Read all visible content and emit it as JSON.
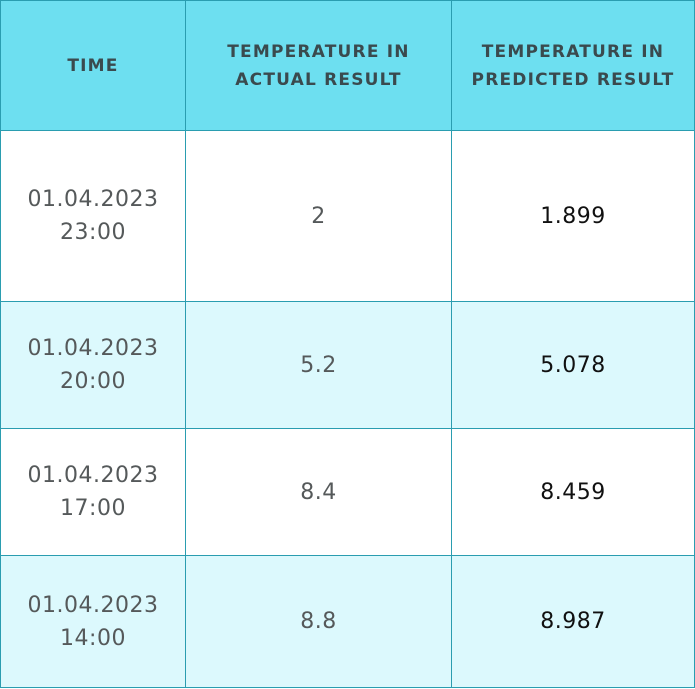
{
  "table": {
    "headers": {
      "time": "TIME",
      "actual": "TEMPERATURE IN ACTUAL RESULT",
      "predicted": "TEMPERATURE IN PREDICTED RESULT"
    },
    "rows": [
      {
        "date": "01.04.2023",
        "hour": "23:00",
        "actual": "2",
        "predicted": "1.899"
      },
      {
        "date": "01.04.2023",
        "hour": "20:00",
        "actual": "5.2",
        "predicted": "5.078"
      },
      {
        "date": "01.04.2023",
        "hour": "17:00",
        "actual": "8.4",
        "predicted": "8.459"
      },
      {
        "date": "01.04.2023",
        "hour": "14:00",
        "actual": "8.8",
        "predicted": "8.987"
      }
    ],
    "colors": {
      "header_bg": "#6ddff0",
      "row_white": "#ffffff",
      "row_tint": "#dcf9fd",
      "border": "#2a9db0"
    }
  }
}
